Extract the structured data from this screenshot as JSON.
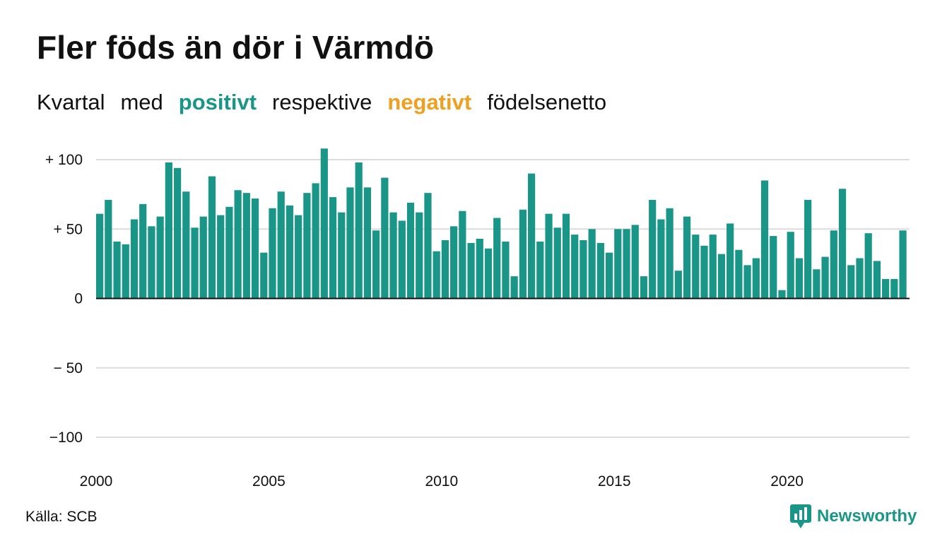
{
  "title": "Fler föds än dör i Värmdö",
  "subtitle": {
    "part1": "Kvartal",
    "part2": "med",
    "positive": "positivt",
    "part3": "respektive",
    "negative": "negativt",
    "part4": "födelsenetto"
  },
  "source": "Källa: SCB",
  "logo": {
    "text": "Newsworthy",
    "icon": "newsworthy-bar-chart-icon"
  },
  "colors": {
    "positive": "#1a9688",
    "negative": "#f0a020",
    "grid": "#dcdcdc",
    "text": "#111111"
  },
  "chart_data": {
    "type": "bar",
    "x_unit": "quarter",
    "x_start": "2000 Q1",
    "x_ticks": [
      "2000",
      "2005",
      "2010",
      "2015",
      "2020"
    ],
    "y_ticks": [
      "+ 100",
      "+  50",
      "0",
      "− 50",
      "−100"
    ],
    "y_tick_values": [
      100,
      50,
      0,
      -50,
      -100
    ],
    "ylim": [
      -100,
      100
    ],
    "grid": true,
    "legend": "none",
    "values": [
      61,
      71,
      41,
      39,
      57,
      68,
      52,
      59,
      98,
      94,
      77,
      51,
      59,
      88,
      60,
      66,
      78,
      76,
      72,
      33,
      65,
      77,
      67,
      60,
      76,
      83,
      108,
      73,
      62,
      80,
      98,
      80,
      49,
      87,
      62,
      56,
      69,
      62,
      76,
      34,
      42,
      52,
      63,
      40,
      43,
      36,
      58,
      41,
      16,
      64,
      90,
      41,
      61,
      51,
      61,
      46,
      42,
      50,
      40,
      33,
      50,
      50,
      53,
      16,
      71,
      57,
      65,
      20,
      59,
      46,
      38,
      46,
      32,
      54,
      35,
      24,
      29,
      85,
      45,
      6,
      48,
      29,
      71,
      21,
      30,
      49,
      79,
      24,
      29,
      47,
      27,
      14,
      14,
      49
    ]
  }
}
